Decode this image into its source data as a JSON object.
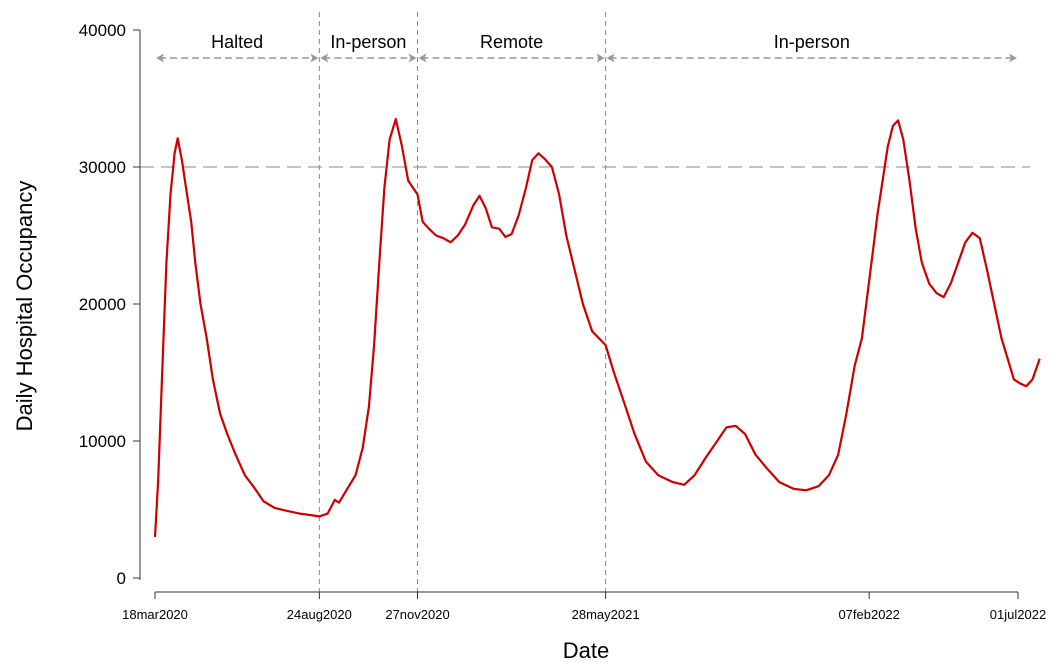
{
  "chart_data": {
    "type": "line",
    "xlabel": "Date",
    "ylabel": "Daily Hospital Occupancy",
    "ylim": [
      0,
      40000
    ],
    "y_ticks": [
      0,
      10000,
      20000,
      30000,
      40000
    ],
    "x_range": [
      "2020-03-18",
      "2022-07-01"
    ],
    "x_ticks": [
      {
        "date": "2020-03-18",
        "label": "18mar2020"
      },
      {
        "date": "2020-08-24",
        "label": "24aug2020"
      },
      {
        "date": "2020-11-27",
        "label": "27nov2020"
      },
      {
        "date": "2021-05-28",
        "label": "28may2021"
      },
      {
        "date": "2022-02-07",
        "label": "07feb2022"
      },
      {
        "date": "2022-07-01",
        "label": "01jul2022"
      }
    ],
    "reference_line_y": 30000,
    "phase_boundaries": [
      "2020-08-24",
      "2020-11-27",
      "2021-05-28"
    ],
    "phases": [
      {
        "label": "Halted",
        "start": "2020-03-18",
        "end": "2020-08-24"
      },
      {
        "label": "In-person",
        "start": "2020-08-24",
        "end": "2020-11-27"
      },
      {
        "label": "Remote",
        "start": "2020-11-27",
        "end": "2021-05-28"
      },
      {
        "label": "In-person",
        "start": "2021-05-28",
        "end": "2022-07-01"
      }
    ],
    "series": [
      {
        "color": "#cc0000",
        "points": [
          [
            "2020-03-18",
            3000
          ],
          [
            "2020-03-21",
            7000
          ],
          [
            "2020-03-25",
            15000
          ],
          [
            "2020-03-29",
            23000
          ],
          [
            "2020-04-02",
            28000
          ],
          [
            "2020-04-06",
            31000
          ],
          [
            "2020-04-09",
            32100
          ],
          [
            "2020-04-13",
            30500
          ],
          [
            "2020-04-18",
            28000
          ],
          [
            "2020-04-22",
            26000
          ],
          [
            "2020-04-26",
            23000
          ],
          [
            "2020-05-01",
            20000
          ],
          [
            "2020-05-07",
            17500
          ],
          [
            "2020-05-13",
            14500
          ],
          [
            "2020-05-20",
            12000
          ],
          [
            "2020-05-27",
            10500
          ],
          [
            "2020-06-04",
            9000
          ],
          [
            "2020-06-13",
            7500
          ],
          [
            "2020-06-22",
            6600
          ],
          [
            "2020-07-01",
            5600
          ],
          [
            "2020-07-12",
            5100
          ],
          [
            "2020-07-24",
            4900
          ],
          [
            "2020-08-05",
            4700
          ],
          [
            "2020-08-15",
            4600
          ],
          [
            "2020-08-24",
            4500
          ],
          [
            "2020-09-01",
            4700
          ],
          [
            "2020-09-08",
            5700
          ],
          [
            "2020-09-12",
            5500
          ],
          [
            "2020-09-20",
            6500
          ],
          [
            "2020-09-28",
            7500
          ],
          [
            "2020-10-05",
            9500
          ],
          [
            "2020-10-11",
            12500
          ],
          [
            "2020-10-16",
            17000
          ],
          [
            "2020-10-21",
            23000
          ],
          [
            "2020-10-26",
            28500
          ],
          [
            "2020-10-31",
            32000
          ],
          [
            "2020-11-06",
            33500
          ],
          [
            "2020-11-12",
            31500
          ],
          [
            "2020-11-18",
            29000
          ],
          [
            "2020-11-27",
            28000
          ],
          [
            "2020-12-02",
            26000
          ],
          [
            "2020-12-08",
            25500
          ],
          [
            "2020-12-15",
            25000
          ],
          [
            "2020-12-22",
            24800
          ],
          [
            "2020-12-29",
            24500
          ],
          [
            "2021-01-05",
            25000
          ],
          [
            "2021-01-12",
            25800
          ],
          [
            "2021-01-20",
            27200
          ],
          [
            "2021-01-26",
            27900
          ],
          [
            "2021-02-01",
            27000
          ],
          [
            "2021-02-07",
            25600
          ],
          [
            "2021-02-14",
            25500
          ],
          [
            "2021-02-20",
            24900
          ],
          [
            "2021-02-26",
            25100
          ],
          [
            "2021-03-05",
            26500
          ],
          [
            "2021-03-12",
            28500
          ],
          [
            "2021-03-18",
            30500
          ],
          [
            "2021-03-24",
            31000
          ],
          [
            "2021-03-30",
            30600
          ],
          [
            "2021-04-06",
            30000
          ],
          [
            "2021-04-13",
            28000
          ],
          [
            "2021-04-20",
            25000
          ],
          [
            "2021-04-28",
            22500
          ],
          [
            "2021-05-06",
            20000
          ],
          [
            "2021-05-15",
            18000
          ],
          [
            "2021-05-28",
            17000
          ],
          [
            "2021-06-05",
            15000
          ],
          [
            "2021-06-14",
            13000
          ],
          [
            "2021-06-25",
            10500
          ],
          [
            "2021-07-06",
            8500
          ],
          [
            "2021-07-18",
            7500
          ],
          [
            "2021-08-01",
            7000
          ],
          [
            "2021-08-12",
            6800
          ],
          [
            "2021-08-22",
            7500
          ],
          [
            "2021-09-02",
            8800
          ],
          [
            "2021-09-13",
            10000
          ],
          [
            "2021-09-22",
            11000
          ],
          [
            "2021-10-01",
            11100
          ],
          [
            "2021-10-10",
            10500
          ],
          [
            "2021-10-20",
            9000
          ],
          [
            "2021-10-31",
            8000
          ],
          [
            "2021-11-12",
            7000
          ],
          [
            "2021-11-26",
            6500
          ],
          [
            "2021-12-08",
            6400
          ],
          [
            "2021-12-20",
            6700
          ],
          [
            "2021-12-30",
            7500
          ],
          [
            "2022-01-08",
            9000
          ],
          [
            "2022-01-16",
            12000
          ],
          [
            "2022-01-24",
            15500
          ],
          [
            "2022-01-31",
            17500
          ],
          [
            "2022-02-05",
            20500
          ],
          [
            "2022-02-10",
            23500
          ],
          [
            "2022-02-15",
            26500
          ],
          [
            "2022-02-20",
            29000
          ],
          [
            "2022-02-25",
            31500
          ],
          [
            "2022-03-02",
            33000
          ],
          [
            "2022-03-07",
            33400
          ],
          [
            "2022-03-12",
            32000
          ],
          [
            "2022-03-18",
            29000
          ],
          [
            "2022-03-24",
            25500
          ],
          [
            "2022-03-30",
            23000
          ],
          [
            "2022-04-06",
            21500
          ],
          [
            "2022-04-13",
            20800
          ],
          [
            "2022-04-20",
            20500
          ],
          [
            "2022-04-27",
            21500
          ],
          [
            "2022-05-04",
            23000
          ],
          [
            "2022-05-11",
            24500
          ],
          [
            "2022-05-18",
            25200
          ],
          [
            "2022-05-25",
            24800
          ],
          [
            "2022-06-01",
            22500
          ],
          [
            "2022-06-08",
            20000
          ],
          [
            "2022-06-15",
            17500
          ],
          [
            "2022-06-21",
            16000
          ],
          [
            "2022-06-27",
            14500
          ],
          [
            "2022-07-03",
            14200
          ],
          [
            "2022-07-09",
            14000
          ],
          [
            "2022-07-15",
            14500
          ],
          [
            "2022-07-22",
            16000
          ]
        ]
      }
    ]
  }
}
